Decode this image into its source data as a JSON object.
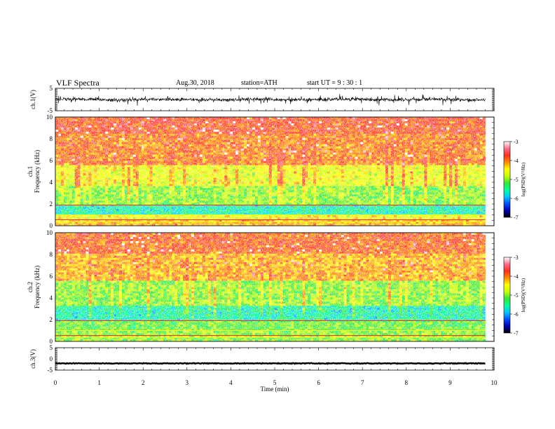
{
  "header": {
    "title": "VLF  Spectra",
    "date": "Aug.30, 2018",
    "station": "station=ATH",
    "start_ut": "start  UT  =    9  : 30 : 1"
  },
  "colors": {
    "spectrogram_ramp": [
      "#000000",
      "#0000b4",
      "#0050ff",
      "#00c8ff",
      "#00ff96",
      "#32e632",
      "#c8ff00",
      "#ffff00",
      "#ff8c00",
      "#ff2d1e",
      "#ff6e8c",
      "#ffffff"
    ],
    "waveform": "#000000"
  },
  "chart_data": [
    {
      "type": "line",
      "panel": "ch1_waveform",
      "ylabel": "ch.1(V)",
      "ylim": [
        -5,
        5
      ],
      "ytick_labels": [
        "5",
        "-5"
      ],
      "xlim": [
        0,
        10
      ],
      "series_summary": "noisy waveform fluctuating mostly between -1 and +1 V with spikes up to about ±2.5 V over 0–9.8 min"
    },
    {
      "type": "heatmap",
      "panel": "ch1_spectrogram",
      "ylabel": "ch.1\nFrequency  (kHz)",
      "ylim": [
        0,
        10
      ],
      "ytick_labels": [
        "0",
        "2",
        "4",
        "6",
        "8",
        "10"
      ],
      "xlim": [
        0,
        9.8
      ],
      "colorbar_label": "log(PSD)(V²/Hz)",
      "colorbar_range": [
        -7,
        -3
      ],
      "colorbar_ticks": [
        "-3",
        "-4",
        "-5",
        "-6",
        "-7"
      ],
      "bands_kHz_logPSD": [
        {
          "f": [
            0,
            0.6
          ],
          "level": -4.2
        },
        {
          "f": [
            0.6,
            1.0
          ],
          "level": -4.5
        },
        {
          "f": [
            1.0,
            2.0
          ],
          "level": -5.6
        },
        {
          "f": [
            2.0,
            3.6
          ],
          "level": -5.0
        },
        {
          "f": [
            3.6,
            5.5
          ],
          "level": -4.6
        },
        {
          "f": [
            5.5,
            8.5
          ],
          "level": -4.0
        },
        {
          "f": [
            8.5,
            10.0
          ],
          "level": -3.8
        }
      ]
    },
    {
      "type": "heatmap",
      "panel": "ch2_spectrogram",
      "ylabel": "ch.2\nFrequency  (kHz)",
      "ylim": [
        0,
        10
      ],
      "ytick_labels": [
        "0",
        "2",
        "4",
        "6",
        "8",
        "10"
      ],
      "xlim": [
        0,
        9.8
      ],
      "colorbar_label": "log(PSD)(V²/Hz)",
      "colorbar_range": [
        -7,
        -3
      ],
      "colorbar_ticks": [
        "-3",
        "-4",
        "-5",
        "-6",
        "-7"
      ],
      "bands_kHz_logPSD": [
        {
          "f": [
            0,
            1.0
          ],
          "level": -5.0
        },
        {
          "f": [
            1.0,
            2.0
          ],
          "level": -5.1
        },
        {
          "f": [
            2.0,
            3.2
          ],
          "level": -5.6
        },
        {
          "f": [
            3.2,
            5.5
          ],
          "level": -5.0
        },
        {
          "f": [
            5.5,
            8.0
          ],
          "level": -4.2
        },
        {
          "f": [
            8.0,
            10.0
          ],
          "level": -3.9
        }
      ]
    },
    {
      "type": "line",
      "panel": "ch3_waveform",
      "ylabel": "ch.3(V)",
      "ylim": [
        -5,
        5
      ],
      "ytick_labels": [
        "5",
        "0",
        "-5"
      ],
      "xlim": [
        0,
        10
      ],
      "series_summary": "flat signal near -2 V with very small fluctuation over 0–9.8 min"
    }
  ],
  "x_axis": {
    "xlabel": "Time  (min)",
    "range": [
      0,
      10
    ],
    "tick_labels": [
      "0",
      "1",
      "2",
      "3",
      "4",
      "5",
      "6",
      "7",
      "8",
      "9",
      "10"
    ]
  }
}
